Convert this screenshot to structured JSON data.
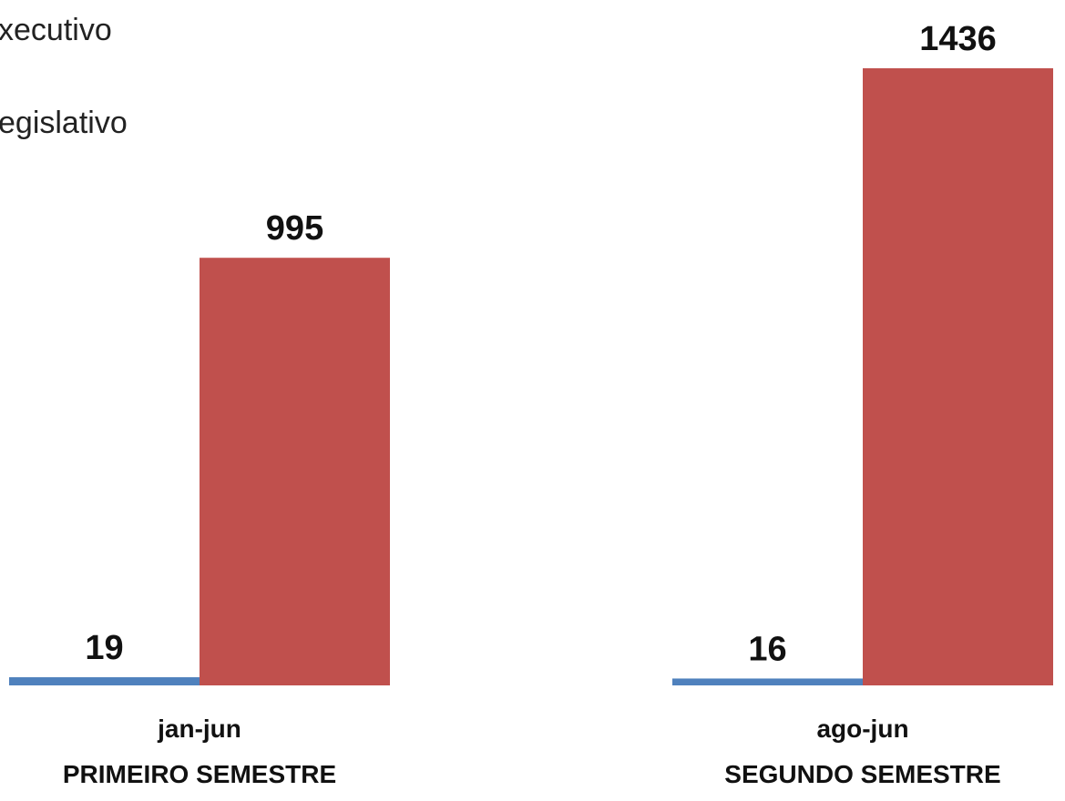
{
  "chart_data": {
    "type": "bar",
    "categories": [
      "jan-jun\nPRIMEIRO SEMESTRE",
      "ago-jun\nSEGUNDO SEMESTRE"
    ],
    "category_lines": [
      [
        "jan-jun",
        "PRIMEIRO SEMESTRE"
      ],
      [
        "ago-jun",
        "SEGUNDO SEMESTRE"
      ]
    ],
    "series": [
      {
        "name": "Executivo",
        "values": [
          19,
          16
        ],
        "color": "#4f81bd"
      },
      {
        "name": "Legislativo",
        "values": [
          995,
          1436
        ],
        "color": "#c0504d"
      }
    ],
    "data_labels": [
      [
        "19",
        "16"
      ],
      [
        "995",
        "1436"
      ]
    ],
    "legend_visible_text": [
      "xecutivo",
      "egislativo"
    ],
    "legend_position": "top-left",
    "ylim": [
      0,
      1436
    ],
    "y_axis_visible": false,
    "grid": false
  }
}
